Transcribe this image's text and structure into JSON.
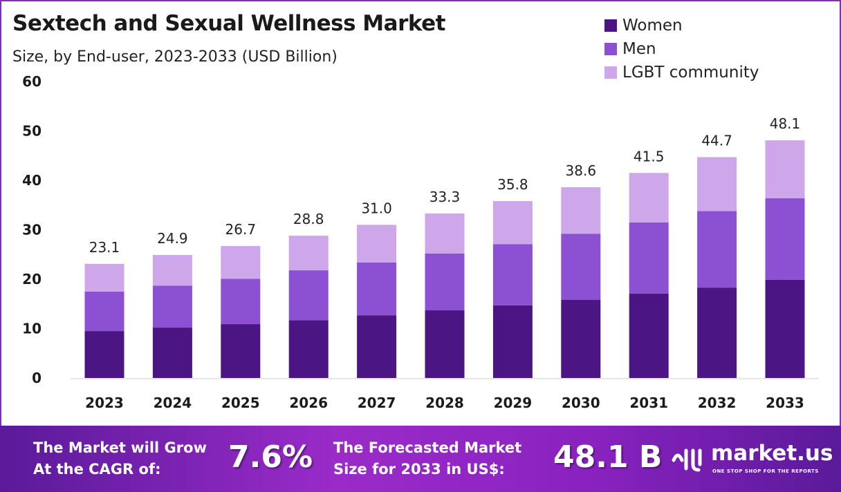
{
  "chart_data": {
    "type": "bar",
    "stacked": true,
    "title": "Sextech and Sexual Wellness Market",
    "subtitle": "Size, by End-user, 2023-2033 (USD Billion)",
    "categories": [
      "2023",
      "2024",
      "2025",
      "2026",
      "2027",
      "2028",
      "2029",
      "2030",
      "2031",
      "2032",
      "2033"
    ],
    "series": [
      {
        "name": "Women",
        "color": "#4b1583",
        "values": [
          9.5,
          10.2,
          10.9,
          11.7,
          12.7,
          13.7,
          14.7,
          15.8,
          17.1,
          18.3,
          19.9
        ]
      },
      {
        "name": "Men",
        "color": "#8c50d2",
        "values": [
          8.0,
          8.5,
          9.2,
          10.1,
          10.7,
          11.5,
          12.4,
          13.4,
          14.4,
          15.5,
          16.5
        ]
      },
      {
        "name": "LGBT community",
        "color": "#cea6ea",
        "values": [
          5.6,
          6.2,
          6.6,
          7.0,
          7.6,
          8.1,
          8.7,
          9.4,
          10.0,
          10.9,
          11.7
        ]
      }
    ],
    "totals": [
      "23.1",
      "24.9",
      "26.7",
      "28.8",
      "31.0",
      "33.3",
      "35.8",
      "38.6",
      "41.5",
      "44.7",
      "48.1"
    ],
    "yticks": [
      "0",
      "10",
      "20",
      "30",
      "40",
      "50",
      "60"
    ],
    "ylim": [
      0,
      60
    ],
    "grid": false,
    "legend": "top-right"
  },
  "footer": {
    "cagr_label_1": "The Market will Grow",
    "cagr_label_2": "At the CAGR of:",
    "cagr_value": "7.6%",
    "forecast_label_1": "The Forecasted Market",
    "forecast_label_2": "Size for 2033 in US$:",
    "forecast_value": "48.1 B",
    "brand": "market.us",
    "brand_tagline": "ONE STOP SHOP FOR THE REPORTS"
  }
}
